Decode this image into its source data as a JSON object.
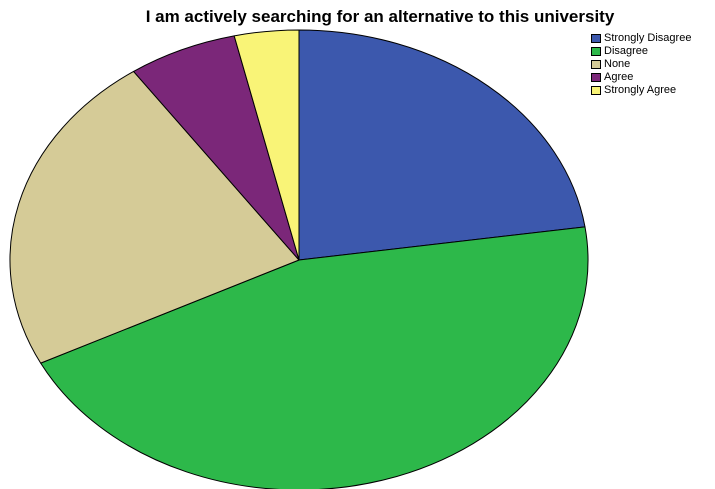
{
  "chart_data": {
    "type": "pie",
    "title": "I am actively searching for an alternative to this university",
    "categories": [
      "Strongly Disagree",
      "Disagree",
      "None",
      "Agree",
      "Strongly Agree"
    ],
    "values": [
      22.7,
      44.9,
      22.7,
      6.1,
      3.6
    ],
    "unit": "percent",
    "start_angle_deg": 0,
    "direction": "clockwise",
    "legend_position": "top-right",
    "colors": [
      "#3c58ad",
      "#2db84a",
      "#d5cb97",
      "#7b2779",
      "#f9f477"
    ]
  }
}
